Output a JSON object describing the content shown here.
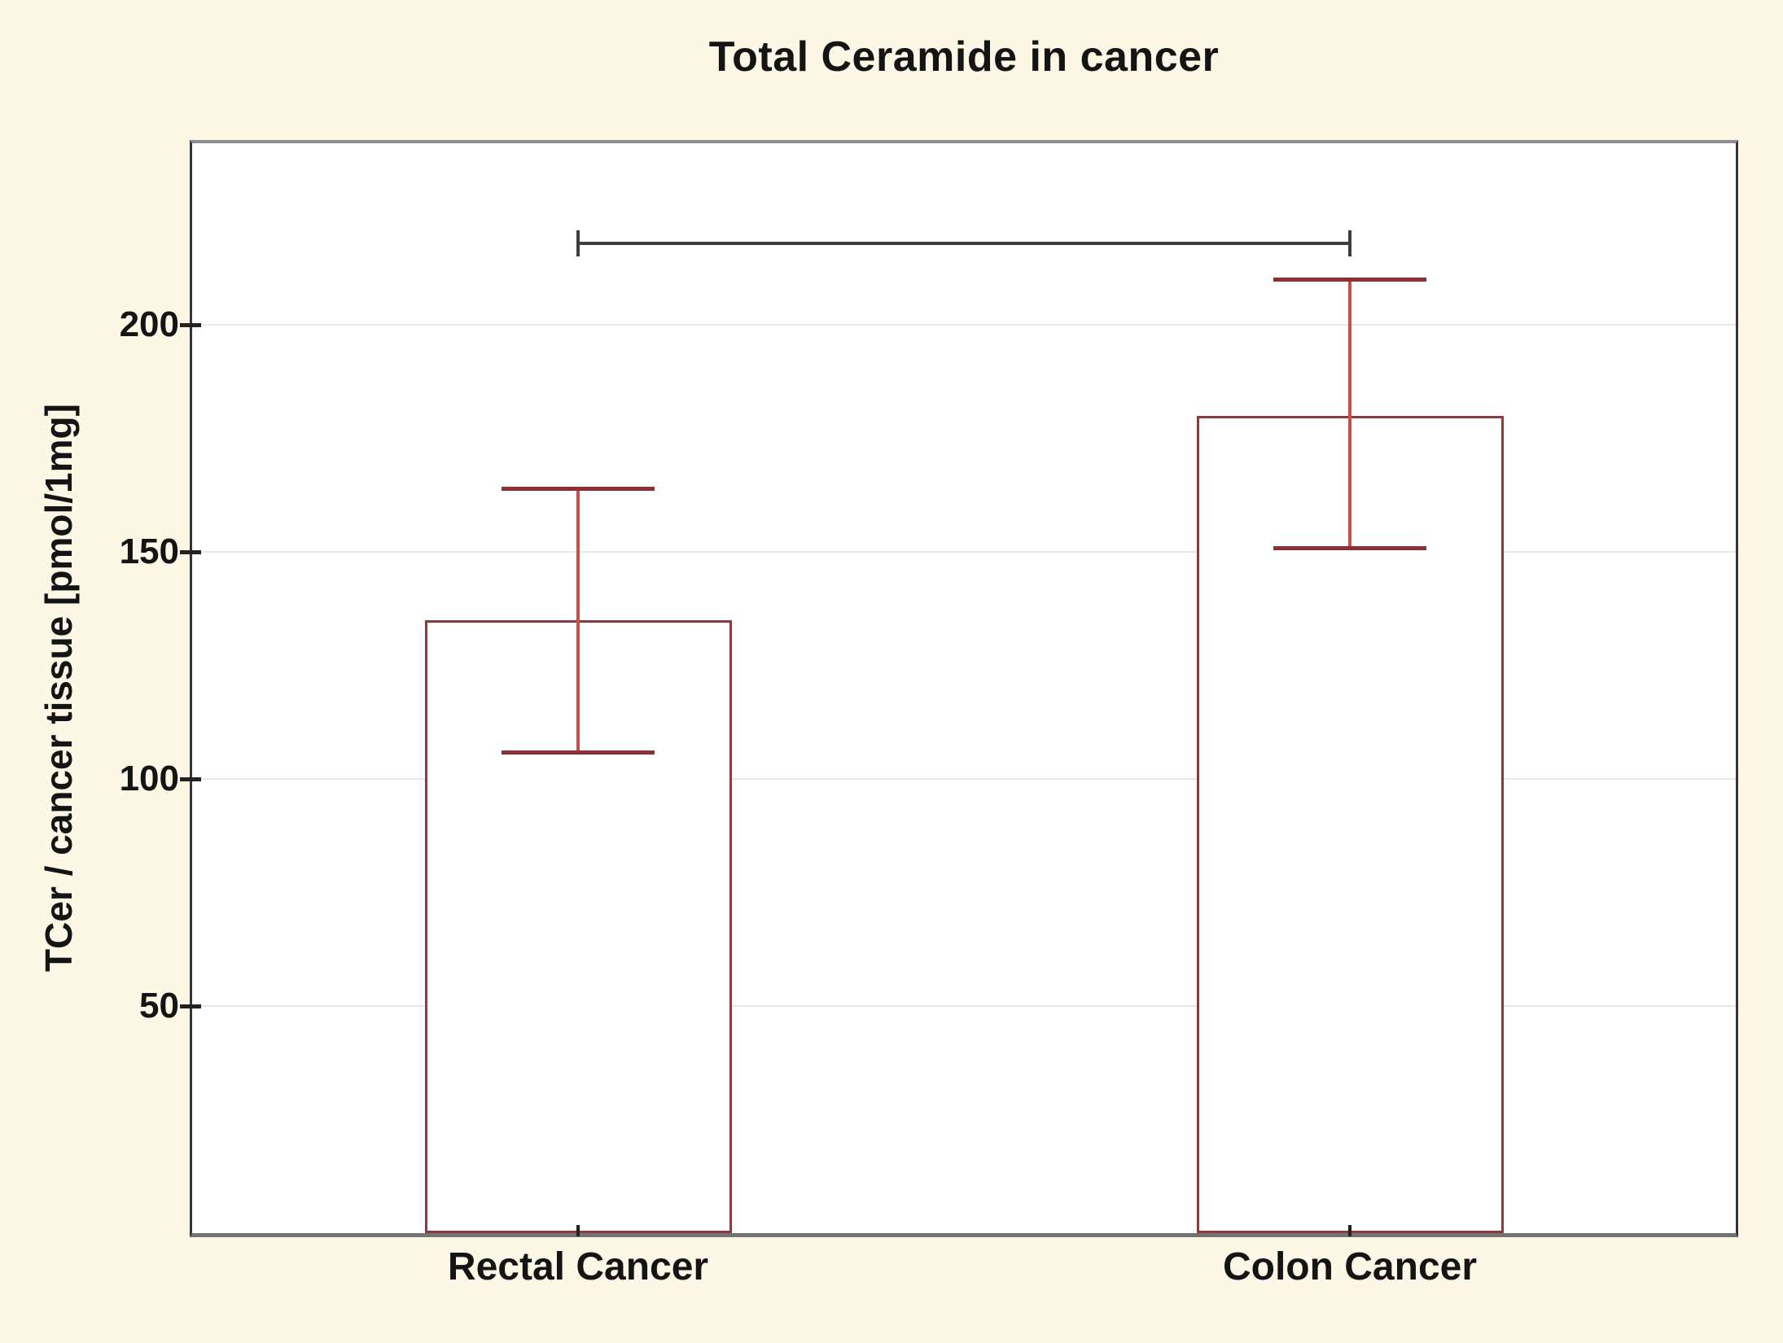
{
  "title": "Total Ceramide in cancer",
  "colors": {
    "page_bg": "#fdf7e6",
    "plot_bg": "#ffffff",
    "grid": "#e7e7e7",
    "bar_outline": "#8e3a3a",
    "error_line": "#c5504c",
    "error_cap": "#8a3232",
    "bracket": "#3c3c3c",
    "tick": "#222222",
    "text": "#141414"
  },
  "chart_data": {
    "type": "bar",
    "title": "Total Ceramide in cancer",
    "xlabel": "",
    "ylabel": "TCer / cancer tissue [pmol/1mg]",
    "categories": [
      "Rectal Cancer",
      "Colon Cancer"
    ],
    "values": [
      135,
      180
    ],
    "error_bars": [
      {
        "low": 106,
        "high": 164
      },
      {
        "low": 151,
        "high": 210
      }
    ],
    "ylim": [
      0,
      240
    ],
    "yticks": [
      50,
      100,
      150,
      200
    ],
    "grid": "horizontal",
    "legend_position": "none",
    "bar_fill": "white",
    "significance_bracket": {
      "between": [
        "Rectal Cancer",
        "Colon Cancer"
      ],
      "y_value": 218,
      "style": "horizontal line with downward end ticks"
    }
  }
}
